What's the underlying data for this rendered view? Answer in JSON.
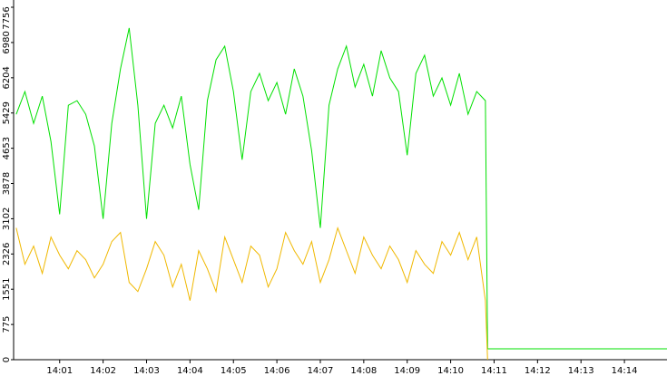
{
  "chart_data": {
    "type": "line",
    "x": [
      0,
      0.2,
      0.4,
      0.6,
      0.8,
      1,
      1.2,
      1.4,
      1.6,
      1.8,
      2,
      2.2,
      2.4,
      2.6,
      2.8,
      3,
      3.2,
      3.4,
      3.6,
      3.8,
      4,
      4.2,
      4.4,
      4.6,
      4.8,
      5,
      5.2,
      5.4,
      5.6,
      5.8,
      6,
      6.2,
      6.4,
      6.6,
      6.8,
      7,
      7.2,
      7.4,
      7.6,
      7.8,
      8,
      8.2,
      8.4,
      8.6,
      8.8,
      9,
      9.2,
      9.4,
      9.6,
      9.8,
      10,
      10.2,
      10.4,
      10.6,
      10.8,
      10.85,
      14.98
    ],
    "series": [
      {
        "color": "#00e000",
        "values": [
          5400,
          5900,
          5200,
          5800,
          4800,
          3200,
          5600,
          5700,
          5400,
          4700,
          3100,
          5200,
          6400,
          7300,
          5600,
          3100,
          5200,
          5600,
          5100,
          5800,
          4300,
          3300,
          5700,
          6600,
          6900,
          5900,
          4400,
          5900,
          6300,
          5700,
          6100,
          5400,
          6400,
          5800,
          4600,
          2900,
          5600,
          6400,
          6900,
          6000,
          6500,
          5800,
          6800,
          6200,
          5900,
          4500,
          6300,
          6700,
          5800,
          6200,
          5600,
          6300,
          5400,
          5900,
          5700,
          240,
          240
        ]
      },
      {
        "color": "#f0b800",
        "values": [
          2900,
          2100,
          2500,
          1900,
          2700,
          2300,
          2000,
          2400,
          2200,
          1800,
          2100,
          2600,
          2800,
          1700,
          1500,
          2000,
          2600,
          2300,
          1600,
          2100,
          1300,
          2400,
          2000,
          1500,
          2700,
          2200,
          1700,
          2500,
          2300,
          1600,
          2000,
          2800,
          2400,
          2100,
          2600,
          1700,
          2200,
          2900,
          2400,
          1900,
          2700,
          2300,
          2000,
          2500,
          2200,
          1700,
          2400,
          2100,
          1900,
          2600,
          2300,
          2800,
          2200,
          2700,
          1300,
          0,
          null
        ]
      }
    ],
    "xlim": [
      -0.06,
      14.98
    ],
    "xticks": [
      {
        "value": 1,
        "label": "14:01"
      },
      {
        "value": 2,
        "label": "14:02"
      },
      {
        "value": 3,
        "label": "14:03"
      },
      {
        "value": 4,
        "label": "14:04"
      },
      {
        "value": 5,
        "label": "14:05"
      },
      {
        "value": 6,
        "label": "14:06"
      },
      {
        "value": 7,
        "label": "14:07"
      },
      {
        "value": 8,
        "label": "14:08"
      },
      {
        "value": 9,
        "label": "14:09"
      },
      {
        "value": 10,
        "label": "14:10"
      },
      {
        "value": 11,
        "label": "14:11"
      },
      {
        "value": 12,
        "label": "14:12"
      },
      {
        "value": 13,
        "label": "14:13"
      },
      {
        "value": 14,
        "label": "14:14"
      }
    ],
    "ylim": [
      0,
      7756
    ],
    "yticks": [
      0,
      775,
      1551,
      2326,
      3102,
      3878,
      4653,
      5429,
      6204,
      6980,
      7756
    ]
  }
}
